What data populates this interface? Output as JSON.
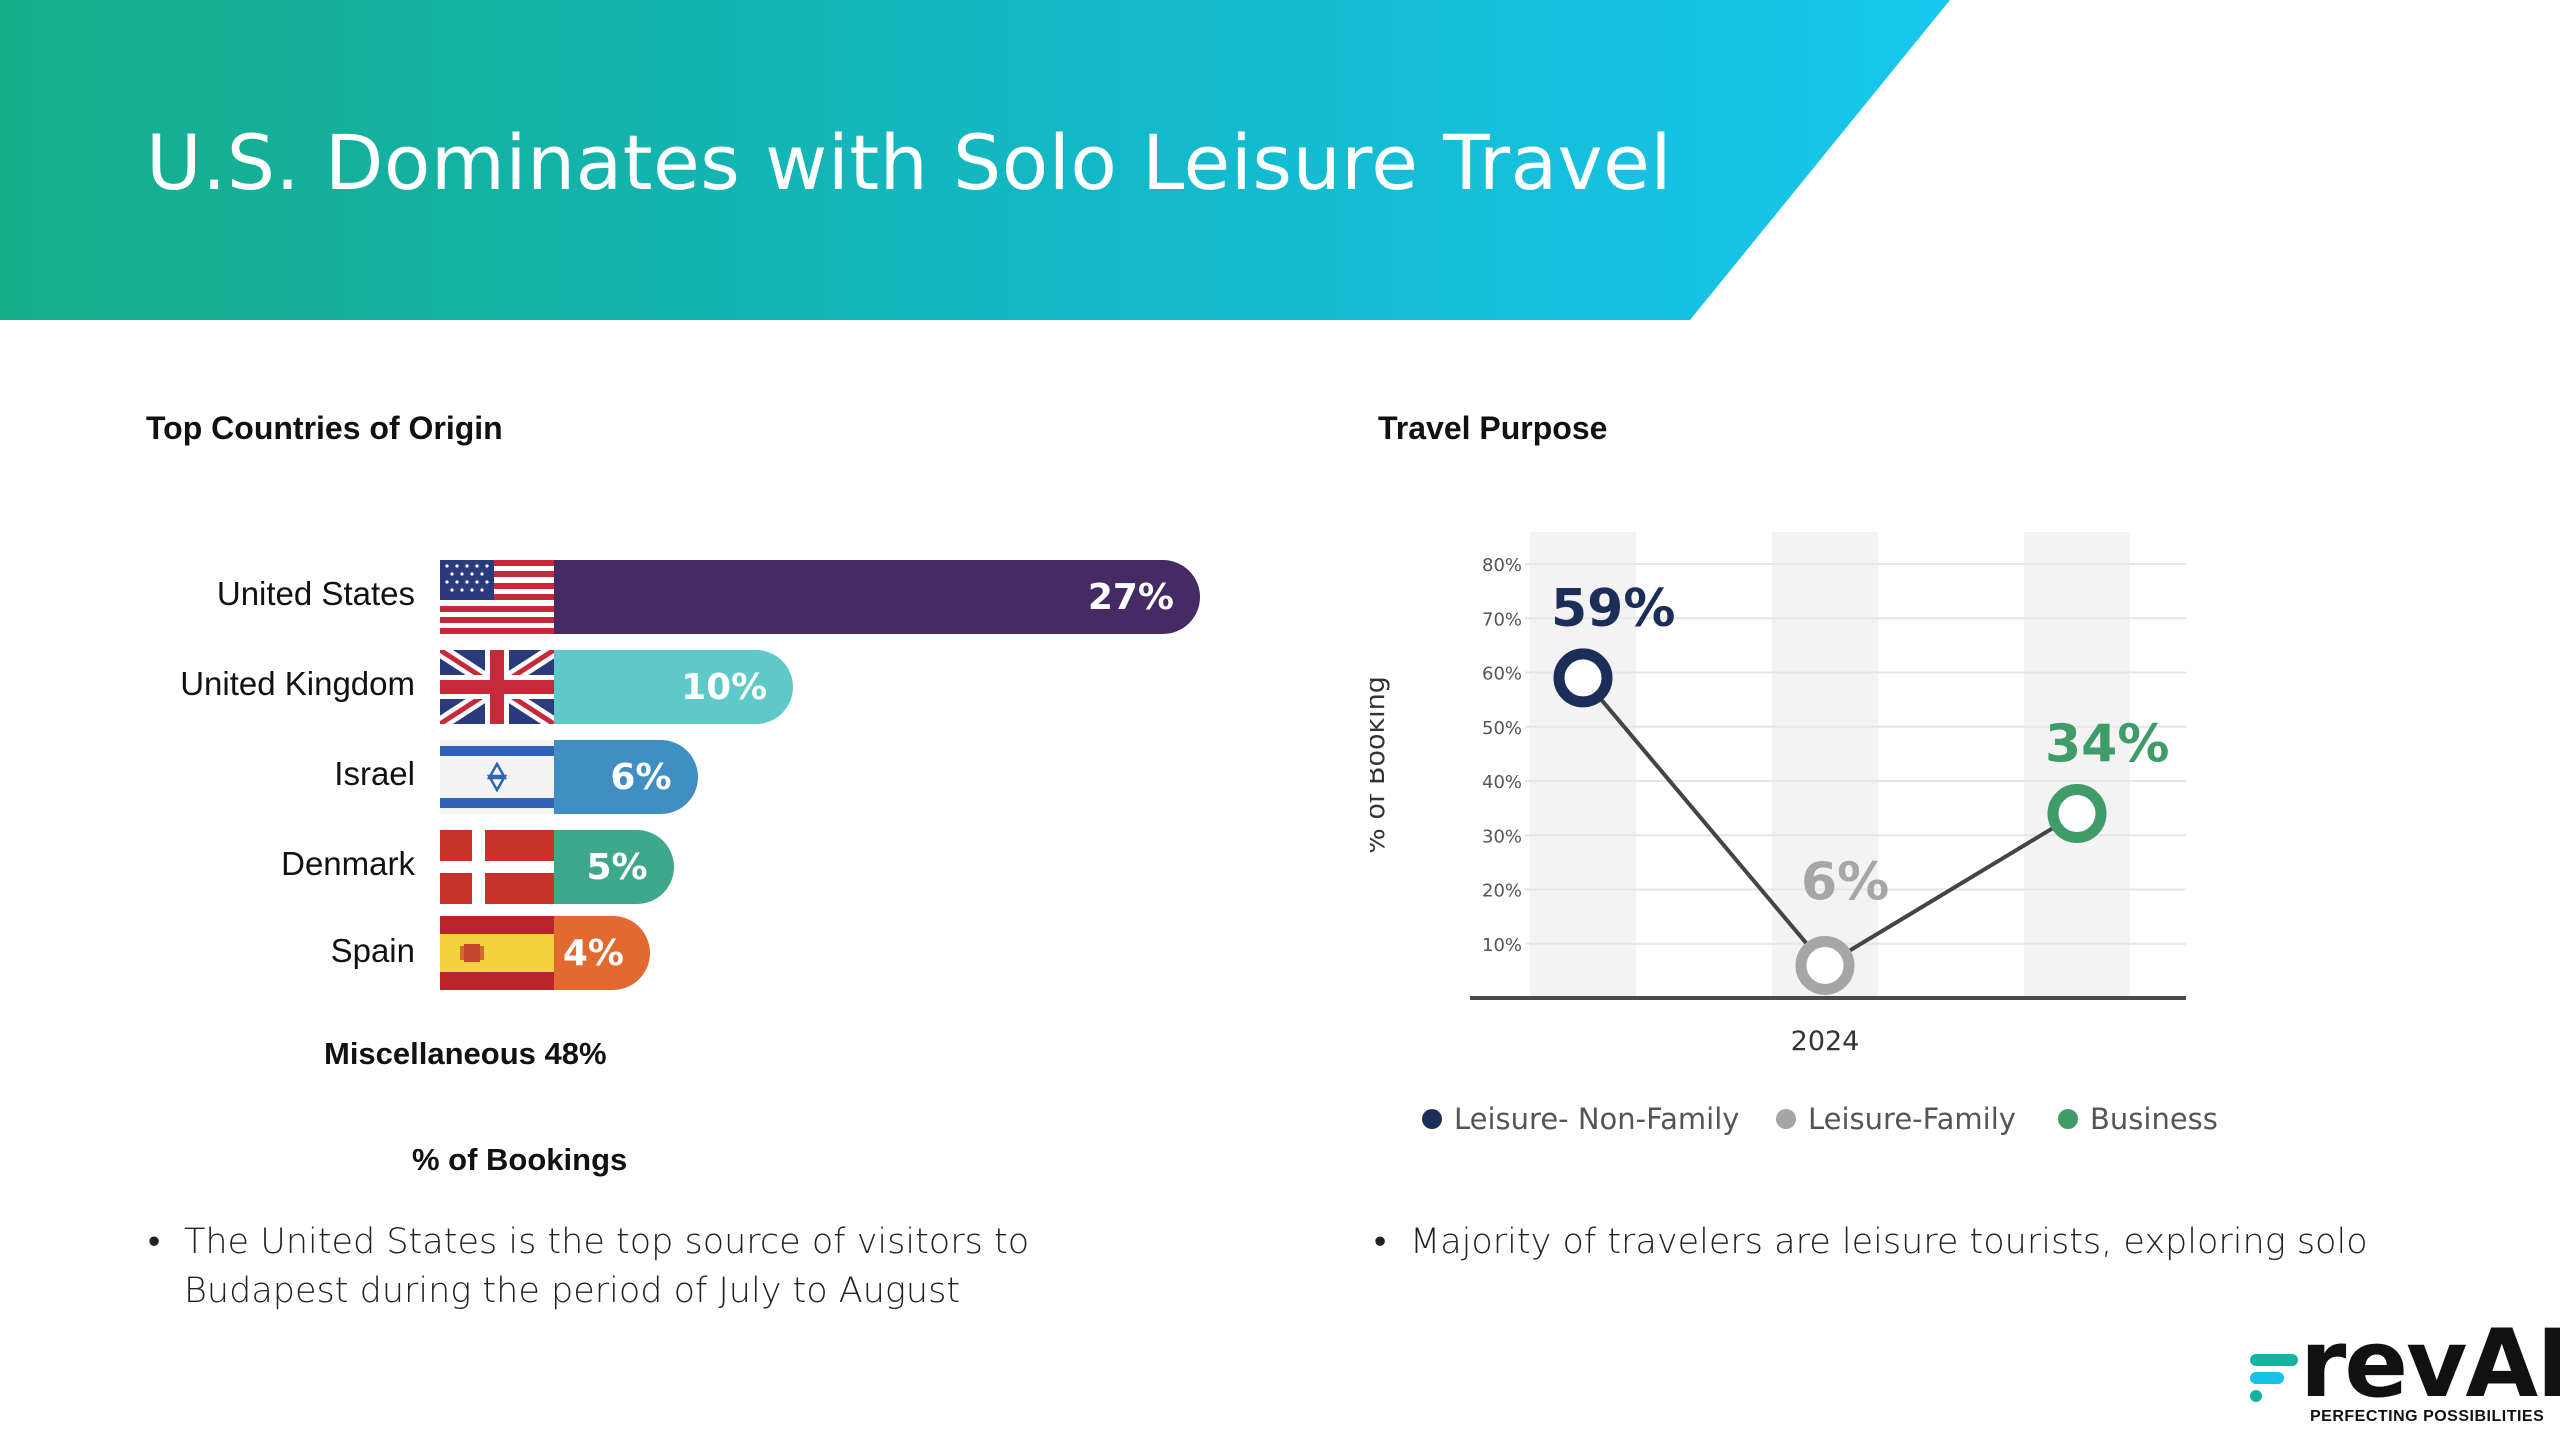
{
  "header": {
    "title": "U.S. Dominates with Solo Leisure Travel"
  },
  "countries": {
    "section_title": "Top Countries of Origin",
    "misc_label": "Miscellaneous 48%",
    "axis_label": "% of Bookings",
    "bullet": "The United States is the top source of visitors to Budapest during the period of July to August"
  },
  "purpose": {
    "section_title": "Travel Purpose",
    "bullet": "Majority of travelers are leisure tourists, exploring solo"
  },
  "logo": {
    "name": "revAI",
    "tagline": "PERFECTING POSSIBILITIES"
  },
  "chart_data": [
    {
      "type": "bar",
      "title": "Top Countries of Origin",
      "xlabel": "% of Bookings",
      "categories": [
        "United States",
        "United Kingdom",
        "Israel",
        "Denmark",
        "Spain"
      ],
      "values": [
        27,
        10,
        6,
        5,
        4
      ],
      "value_labels": [
        "27%",
        "10%",
        "6%",
        "5%",
        "4%"
      ],
      "colors": [
        "#452a63",
        "#5fc8c8",
        "#3f8fc2",
        "#3fa78a",
        "#e06a30"
      ],
      "icons": [
        "us-flag-icon",
        "uk-flag-icon",
        "israel-flag-icon",
        "denmark-flag-icon",
        "spain-flag-icon"
      ]
    },
    {
      "type": "line",
      "title": "Travel Purpose",
      "ylabel": "% of Booking",
      "ylim": [
        0,
        80
      ],
      "yticks": [
        "10%",
        "20%",
        "30%",
        "40%",
        "50%",
        "60%",
        "70%",
        "80%"
      ],
      "x_label": "2024",
      "series": [
        {
          "name": "Leisure- Non-Family",
          "value": 59,
          "label": "59%",
          "color": "#1b2e57"
        },
        {
          "name": "Leisure-Family",
          "value": 6,
          "label": "6%",
          "color": "#a6a6a6"
        },
        {
          "name": "Business",
          "value": 34,
          "label": "34%",
          "color": "#3f9b68"
        }
      ]
    }
  ]
}
